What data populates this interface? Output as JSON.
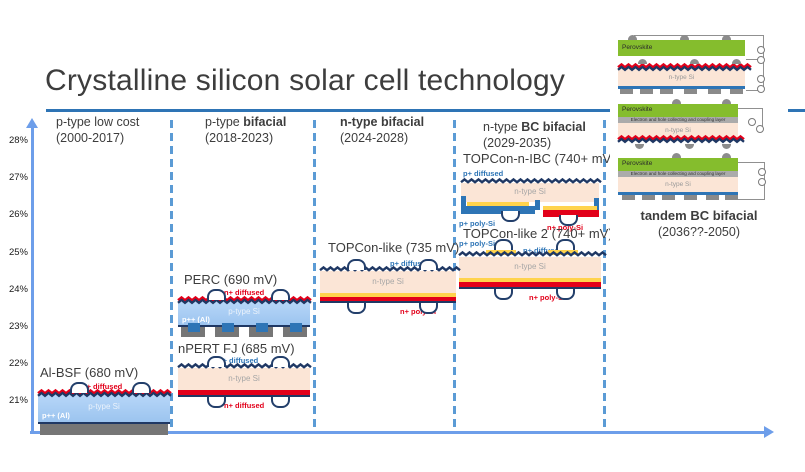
{
  "title": "Crystalline silicon solar cell technology",
  "y_axis": {
    "ticks": [
      "28%",
      "27%",
      "26%",
      "25%",
      "24%",
      "23%",
      "22%",
      "21%"
    ]
  },
  "columns": [
    {
      "prefix": "p-type low cost",
      "bold": "",
      "years": "(2000-2017)"
    },
    {
      "prefix": "p-type ",
      "bold": "bifacial",
      "years": "(2018-2023)"
    },
    {
      "prefix": "",
      "bold": "n-type bifacial",
      "years": "(2024-2028)"
    },
    {
      "prefix": "n-type ",
      "bold": "BC bifacial",
      "years": "(2029-2035)"
    },
    {
      "prefix": "",
      "bold": "tandem BC bifacial",
      "years": "(2036??-2050)"
    }
  ],
  "cells": {
    "albsf": {
      "title": "Al-BSF (680 mV)",
      "front_label": "n+ diffused",
      "body_label": "p-type Si",
      "rear_label": "p++ (Al)"
    },
    "perc": {
      "title": "PERC (690 mV)",
      "front_label": "n+ diffused",
      "body_label": "p-type Si",
      "rear_label": "p++ (Al)"
    },
    "npert": {
      "title": "nPERT FJ (685 mV)",
      "front_label": "p+ diffused",
      "body_label": "n-type Si",
      "rear_label": "n+ diffused"
    },
    "topcon": {
      "title": "TOPCon-like (735 mV)",
      "front_label": "p+ diffused",
      "body_label": "n-type Si",
      "rear_label": "n+ poly-Si"
    },
    "ibc": {
      "title": "TOPCon-n-IBC (740+ mV)",
      "front_label": "p+ diffused",
      "body_label": "n-type Si",
      "rear_p_label": "p+ poly-Si",
      "rear_n_label": "n+ poly-Si"
    },
    "topcon2": {
      "title": "TOPCon-like 2 (740+ mV)",
      "front_poly_label": "p+ poly-Si",
      "front_label": "p+ diffused",
      "body_label": "n-type Si",
      "rear_label": "n+ poly-Si"
    }
  },
  "tandem": {
    "perovskite_label": "Perovskite",
    "coupling_label": "Electron and hole collecting and coupling layer",
    "si_label": "n-type Si"
  },
  "colors": {
    "axis_blue": "#6D9EEA",
    "underline_blue": "#2E74B5",
    "dashed_blue": "#5B9BD5",
    "navy": "#1F3864",
    "label_blue": "#2E75B6",
    "label_red": "#E2001A",
    "p_type_si_blue": "#A5CBF2",
    "n_type_si_peach": "#FBE5D6",
    "poly_si_yellow": "#FFD34D",
    "perovskite_green": "#85BD2D",
    "contact_gray": "#8C8C8C",
    "rear_metal_gray": "#767676"
  }
}
